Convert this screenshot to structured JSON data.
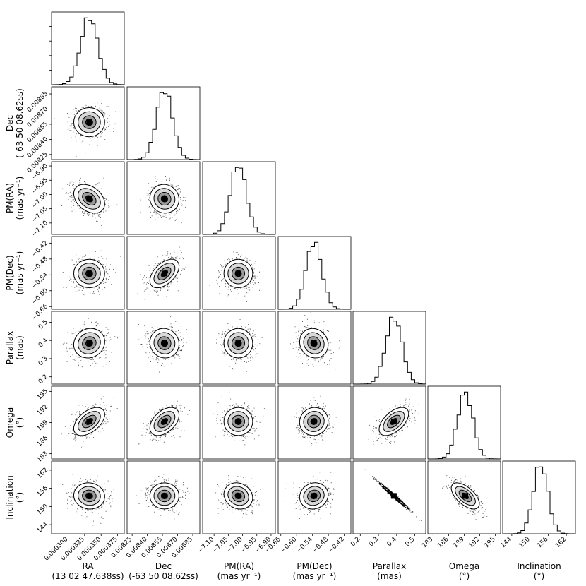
{
  "chart_data": {
    "type": "corner",
    "title": "",
    "parameters": [
      {
        "name": "RA",
        "unit": "13 02 47.638ss",
        "xlabel": [
          "RA",
          "(13 02 47.638ss)"
        ],
        "ylabel": [],
        "range": [
          0.000275,
          0.000385
        ],
        "ticks": [
          "0.000300",
          "0.000325",
          "0.000350",
          "0.000375"
        ],
        "tick_values": [
          0.0003,
          0.000325,
          0.00035,
          0.000375
        ],
        "mean": 0.000332,
        "sd": 1.3e-05
      },
      {
        "name": "Dec",
        "unit": "-63 50 08.62ss",
        "xlabel": [
          "Dec",
          "(-63 50 08.62ss)"
        ],
        "ylabel": [
          "Dec",
          "(-63 50 08.62ss)"
        ],
        "range": [
          0.0082,
          0.00892
        ],
        "ticks": [
          "0.00825",
          "0.00840",
          "0.00855",
          "0.00870",
          "0.00885"
        ],
        "tick_values": [
          0.00825,
          0.0084,
          0.00855,
          0.0087,
          0.00885
        ],
        "mean": 0.00857,
        "sd": 8e-05
      },
      {
        "name": "PM(RA)",
        "unit": "mas yr⁻¹",
        "xlabel": [
          "PM(RA)",
          "(mas yr⁻¹)"
        ],
        "ylabel": [
          "PM(RA)",
          "(mas yr⁻¹)"
        ],
        "range": [
          -7.14,
          -6.885
        ],
        "ticks": [
          "−7.10",
          "−7.05",
          "−7.00",
          "−6.95",
          "−6.90"
        ],
        "tick_values": [
          -7.1,
          -7.05,
          -7.0,
          -6.95,
          -6.9
        ],
        "mean": -7.015,
        "sd": 0.028
      },
      {
        "name": "PM(Dec)",
        "unit": "mas yr⁻¹",
        "xlabel": [
          "PM(Dec)",
          "(mas yr⁻¹)"
        ],
        "ylabel": [
          "PM(Dec)",
          "(mas yr⁻¹)"
        ],
        "range": [
          -0.67,
          -0.395
        ],
        "ticks": [
          "−0.66",
          "−0.60",
          "−0.54",
          "−0.48",
          "−0.42"
        ],
        "tick_values": [
          -0.66,
          -0.6,
          -0.54,
          -0.48,
          -0.42
        ],
        "mean": -0.535,
        "sd": 0.03
      },
      {
        "name": "Parallax",
        "unit": "mas",
        "xlabel": [
          "Parallax",
          "(mas)"
        ],
        "ylabel": [
          "Parallax",
          "(mas)"
        ],
        "range": [
          0.16,
          0.56
        ],
        "ticks": [
          "0.2",
          "0.3",
          "0.4",
          "0.5"
        ],
        "tick_values": [
          0.2,
          0.3,
          0.4,
          0.5
        ],
        "mean": 0.385,
        "sd": 0.045
      },
      {
        "name": "Omega",
        "unit": "°",
        "xlabel": [
          "Omega",
          "(°)"
        ],
        "ylabel": [
          "Omega",
          "(°)"
        ],
        "range": [
          182.0,
          196.0
        ],
        "ticks": [
          "183",
          "186",
          "189",
          "192",
          "195"
        ],
        "tick_values": [
          183,
          186,
          189,
          192,
          195
        ],
        "mean": 189.2,
        "sd": 1.5
      },
      {
        "name": "Inclination",
        "unit": "°",
        "xlabel": [
          "Inclination",
          "(°)"
        ],
        "ylabel": [
          "Inclination",
          "(°)"
        ],
        "range": [
          141.0,
          165.0
        ],
        "ticks": [
          "144",
          "150",
          "156",
          "162"
        ],
        "tick_values": [
          144,
          150,
          156,
          162
        ],
        "mean": 153.5,
        "sd": 2.4
      }
    ],
    "correlations": [
      {
        "i": 1,
        "j": 0,
        "rho": 0.0
      },
      {
        "i": 2,
        "j": 0,
        "rho": -0.35
      },
      {
        "i": 2,
        "j": 1,
        "rho": -0.05
      },
      {
        "i": 3,
        "j": 0,
        "rho": 0.0
      },
      {
        "i": 3,
        "j": 1,
        "rho": 0.5
      },
      {
        "i": 3,
        "j": 2,
        "rho": 0.0
      },
      {
        "i": 4,
        "j": 0,
        "rho": 0.1
      },
      {
        "i": 4,
        "j": 1,
        "rho": -0.05
      },
      {
        "i": 4,
        "j": 2,
        "rho": 0.0
      },
      {
        "i": 4,
        "j": 3,
        "rho": -0.1
      },
      {
        "i": 5,
        "j": 0,
        "rho": 0.5
      },
      {
        "i": 5,
        "j": 1,
        "rho": 0.45
      },
      {
        "i": 5,
        "j": 2,
        "rho": 0.0
      },
      {
        "i": 5,
        "j": 3,
        "rho": 0.05
      },
      {
        "i": 5,
        "j": 4,
        "rho": 0.55
      },
      {
        "i": 6,
        "j": 0,
        "rho": -0.05
      },
      {
        "i": 6,
        "j": 1,
        "rho": 0.0
      },
      {
        "i": 6,
        "j": 2,
        "rho": -0.15
      },
      {
        "i": 6,
        "j": 3,
        "rho": 0.1
      },
      {
        "i": 6,
        "j": 4,
        "rho": -0.99
      },
      {
        "i": 6,
        "j": 5,
        "rho": -0.6
      }
    ],
    "histogram_bins": 20
  }
}
